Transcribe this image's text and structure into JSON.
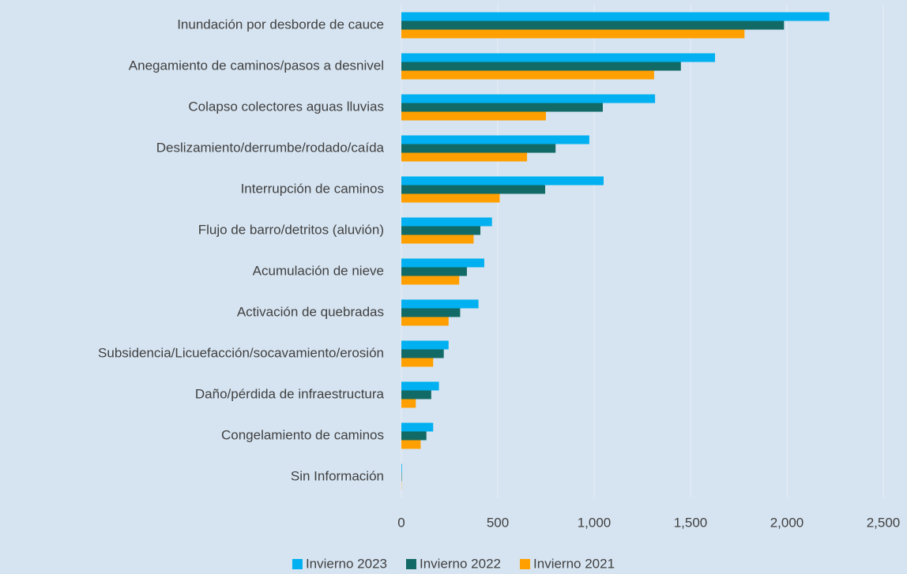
{
  "chart_data": {
    "type": "barh",
    "categories": [
      "Inundación por desborde de cauce",
      "Anegamiento de caminos/pasos a desnivel",
      "Colapso colectores aguas lluvias",
      "Deslizamiento/derrumbe/rodado/caída",
      "Interrupción de caminos",
      "Flujo de barro/detritos (aluvión)",
      "Acumulación de nieve",
      "Activación de quebradas",
      "Subsidencia/Licuefacción/socavamiento/erosión",
      "Daño/pérdida de infraestructura",
      "Congelamiento de caminos",
      "Sin Información"
    ],
    "series": [
      {
        "name": "Invierno 2023",
        "color": "#00b0f0",
        "values": [
          2220,
          1627,
          1316,
          975,
          1049,
          470,
          430,
          400,
          245,
          195,
          165,
          3
        ]
      },
      {
        "name": "Invierno 2022",
        "color": "#116a66",
        "values": [
          1985,
          1450,
          1045,
          800,
          746,
          410,
          340,
          305,
          220,
          155,
          130,
          2
        ]
      },
      {
        "name": "Invierno 2021",
        "color": "#ff9f00",
        "values": [
          1780,
          1311,
          750,
          652,
          510,
          375,
          300,
          245,
          165,
          75,
          100,
          1
        ]
      }
    ],
    "xlim": [
      0,
      2500
    ],
    "xticks": [
      0,
      500,
      {
        "value": 1000,
        "label": "1,000"
      },
      {
        "value": 1500,
        "label": "1,500"
      },
      {
        "value": 2000,
        "label": "2,000"
      },
      {
        "value": 2500,
        "label": "2,500"
      }
    ],
    "grid": true,
    "legend": "bottom"
  }
}
